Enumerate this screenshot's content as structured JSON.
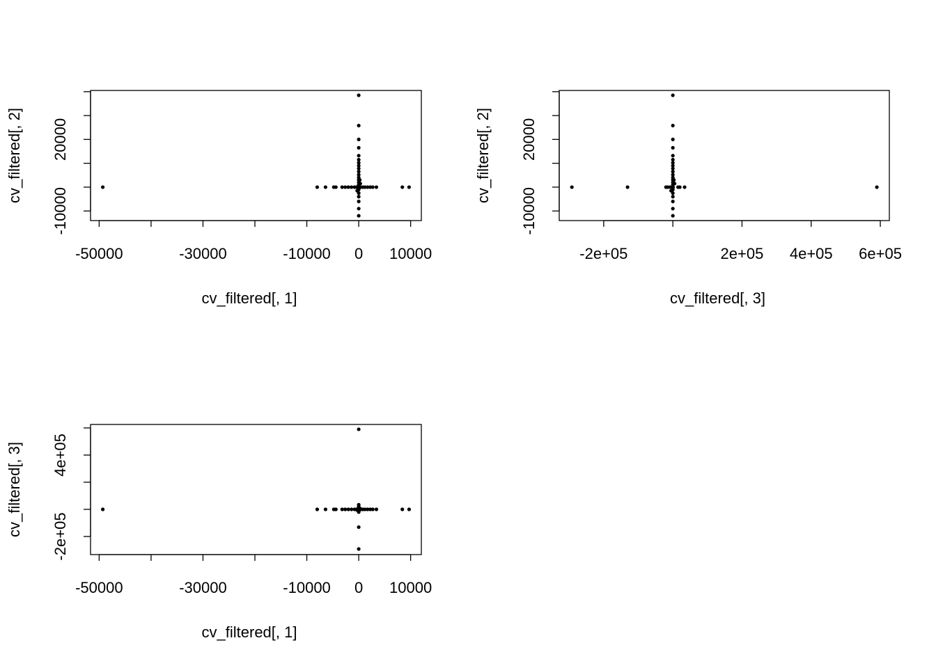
{
  "chart_data": [
    {
      "type": "scatter",
      "xlabel": "cv_filtered[, 1]",
      "ylabel": "cv_filtered[, 2]",
      "color": "#000000",
      "x": [
        -49300,
        -8000,
        -6400,
        -4800,
        -4400,
        -3200,
        -2600,
        -2000,
        -1400,
        -800,
        -400,
        400,
        800,
        1200,
        1700,
        2200,
        2700,
        3400,
        8400,
        9700,
        0,
        0,
        0,
        0,
        0,
        0,
        0,
        0,
        0,
        0,
        0,
        0,
        0,
        0,
        0,
        0,
        0,
        0,
        0,
        0,
        0,
        0,
        0,
        0,
        0,
        0,
        0,
        0,
        0,
        0,
        300,
        -300,
        200
      ],
      "y": [
        0,
        0,
        0,
        0,
        0,
        0,
        0,
        0,
        0,
        0,
        0,
        0,
        0,
        0,
        0,
        0,
        0,
        0,
        0,
        0,
        38500,
        25800,
        20000,
        16500,
        13200,
        11500,
        10200,
        9000,
        7800,
        6500,
        5200,
        4000,
        3000,
        2000,
        1000,
        -1000,
        -2500,
        -4000,
        -6000,
        -9000,
        -12000,
        0,
        0,
        0,
        0,
        0,
        0,
        0,
        0,
        0,
        1500,
        -1500,
        3000
      ],
      "xlim": [
        -51660,
        12060
      ],
      "ylim": [
        -14020,
        40520
      ],
      "xticks": [
        -50000,
        {
          "value": -40000,
          "label": null
        },
        -30000,
        {
          "value": -20000,
          "label": null
        },
        -10000,
        0,
        10000
      ],
      "yticks": [
        -10000,
        {
          "value": 0,
          "label": null
        },
        {
          "value": 10000,
          "label": null
        },
        20000,
        {
          "value": 30000,
          "label": null
        },
        {
          "value": 40000,
          "label": null
        }
      ]
    },
    {
      "type": "scatter",
      "xlabel": "cv_filtered[, 3]",
      "ylabel": "cv_filtered[, 2]",
      "color": "#000000",
      "x": [
        0,
        0,
        0,
        0,
        0,
        0,
        0,
        0,
        0,
        0,
        0,
        0,
        0,
        0,
        0,
        0,
        0,
        0,
        0,
        0,
        0,
        0,
        0,
        0,
        0,
        0,
        0,
        0,
        0,
        0,
        0,
        0,
        0,
        0,
        0,
        0,
        0,
        0,
        0,
        0,
        0,
        590000,
        -292000,
        -131000,
        34000,
        15000,
        -15000,
        -8000,
        -20000,
        20000,
        5000,
        -5000,
        3000
      ],
      "y": [
        0,
        0,
        0,
        0,
        0,
        0,
        0,
        0,
        0,
        0,
        0,
        0,
        0,
        0,
        0,
        0,
        0,
        0,
        0,
        0,
        38500,
        25800,
        20000,
        16500,
        13200,
        11500,
        10200,
        9000,
        7800,
        6500,
        5200,
        4000,
        3000,
        2000,
        1000,
        -1000,
        -2500,
        -4000,
        -6000,
        -9000,
        -12000,
        0,
        0,
        0,
        0,
        0,
        0,
        0,
        0,
        0,
        1500,
        -1500,
        3000
      ],
      "xlim": [
        -328600,
        626100
      ],
      "ylim": [
        -14020,
        40520
      ],
      "xticks": [
        {
          "value": -200000,
          "label": "-2e+05"
        },
        {
          "value": 0,
          "label": null
        },
        {
          "value": 200000,
          "label": "2e+05"
        },
        {
          "value": 400000,
          "label": "4e+05"
        },
        {
          "value": 600000,
          "label": "6e+05"
        }
      ],
      "yticks": [
        -10000,
        {
          "value": 0,
          "label": null
        },
        {
          "value": 10000,
          "label": null
        },
        20000,
        {
          "value": 30000,
          "label": null
        },
        {
          "value": 40000,
          "label": null
        }
      ]
    },
    {
      "type": "scatter",
      "xlabel": "cv_filtered[, 1]",
      "ylabel": "cv_filtered[, 3]",
      "color": "#000000",
      "x": [
        -49300,
        -8000,
        -6400,
        -4800,
        -4400,
        -3200,
        -2600,
        -2000,
        -1400,
        -800,
        -400,
        400,
        800,
        1200,
        1700,
        2200,
        2700,
        3400,
        8400,
        9700,
        0,
        0,
        0,
        0,
        0,
        0,
        0,
        0,
        0,
        0,
        0,
        0,
        0,
        0,
        0,
        0,
        0,
        0,
        0,
        0,
        0,
        0,
        0,
        0,
        0,
        0,
        0,
        0,
        0,
        0,
        300,
        -300,
        200
      ],
      "y": [
        0,
        0,
        0,
        0,
        0,
        0,
        0,
        0,
        0,
        0,
        0,
        0,
        0,
        0,
        0,
        0,
        0,
        0,
        0,
        0,
        0,
        0,
        0,
        0,
        0,
        0,
        0,
        0,
        0,
        0,
        0,
        0,
        0,
        0,
        0,
        0,
        0,
        0,
        0,
        0,
        0,
        590000,
        -292000,
        -131000,
        34000,
        15000,
        -15000,
        -8000,
        -20000,
        20000,
        5000,
        -5000,
        3000
      ],
      "xlim": [
        -51660,
        12060
      ],
      "ylim": [
        -333300,
        625600
      ],
      "xticks": [
        -50000,
        {
          "value": -40000,
          "label": null
        },
        -30000,
        {
          "value": -20000,
          "label": null
        },
        -10000,
        0,
        10000
      ],
      "yticks": [
        {
          "value": -200000,
          "label": "-2e+05"
        },
        {
          "value": 0,
          "label": null
        },
        {
          "value": 200000,
          "label": null
        },
        {
          "value": 400000,
          "label": "4e+05"
        },
        {
          "value": 600000,
          "label": null
        }
      ]
    }
  ]
}
